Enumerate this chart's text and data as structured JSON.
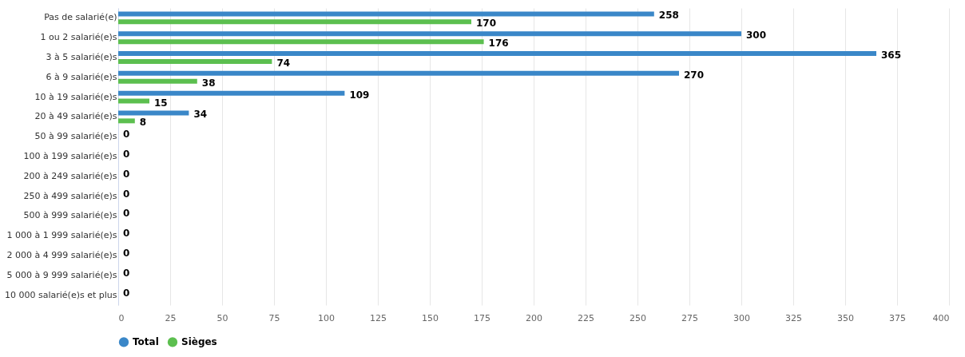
{
  "chart_data": {
    "type": "bar",
    "orientation": "horizontal",
    "categories": [
      "Pas de salarié(e)",
      "1 ou 2 salarié(e)s",
      "3 à 5 salarié(e)s",
      "6 à 9 salarié(e)s",
      "10 à 19 salarié(e)s",
      "20 à 49 salarié(e)s",
      "50 à 99 salarié(e)s",
      "100 à 199 salarié(e)s",
      "200 à 249 salarié(e)s",
      "250 à 499 salarié(e)s",
      "500 à 999 salarié(e)s",
      "1 000 à 1 999 salarié(e)s",
      "2 000 à 4 999 salarié(e)s",
      "5 000 à 9 999 salarié(e)s",
      "10 000 salarié(e)s et plus"
    ],
    "series": [
      {
        "name": "Total",
        "color": "#3a87c8",
        "values": [
          258,
          300,
          365,
          270,
          109,
          34,
          0,
          0,
          0,
          0,
          0,
          0,
          0,
          0,
          0
        ],
        "value_labels": [
          "258",
          "300",
          "365",
          "270",
          "109",
          "34",
          "0",
          "0",
          "0",
          "0",
          "0",
          "0",
          "0",
          "0",
          "0"
        ]
      },
      {
        "name": "Sièges",
        "color": "#5cbf4f",
        "values": [
          170,
          176,
          74,
          38,
          15,
          8,
          0,
          0,
          0,
          0,
          0,
          0,
          0,
          0,
          0
        ],
        "value_labels": [
          "170",
          "176",
          "74",
          "38",
          "15",
          "8",
          null,
          null,
          null,
          null,
          null,
          null,
          null,
          null,
          null
        ]
      }
    ],
    "xlim": [
      0,
      400
    ],
    "xticks": [
      0,
      25,
      50,
      75,
      100,
      125,
      150,
      175,
      200,
      225,
      250,
      275,
      300,
      325,
      350,
      375,
      400
    ],
    "grid": "x",
    "legend": "bottom"
  }
}
